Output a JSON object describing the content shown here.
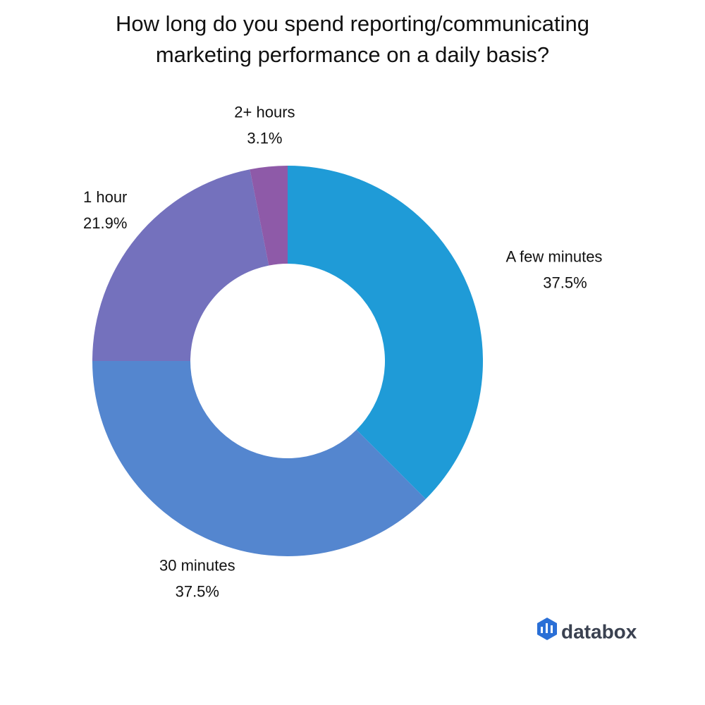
{
  "chart_data": {
    "type": "donut",
    "title": "How long do you spend reporting/communicating marketing performance on a daily basis?",
    "categories": [
      "A few minutes",
      "30 minutes",
      "1 hour",
      "2+ hours"
    ],
    "values": [
      37.5,
      37.5,
      21.9,
      3.1
    ],
    "value_labels": [
      "37.5%",
      "37.5%",
      "21.9%",
      "3.1%"
    ],
    "colors": [
      "#1f9bd7",
      "#5486cf",
      "#7471bd",
      "#8e5aa8"
    ]
  },
  "brand": "databox"
}
